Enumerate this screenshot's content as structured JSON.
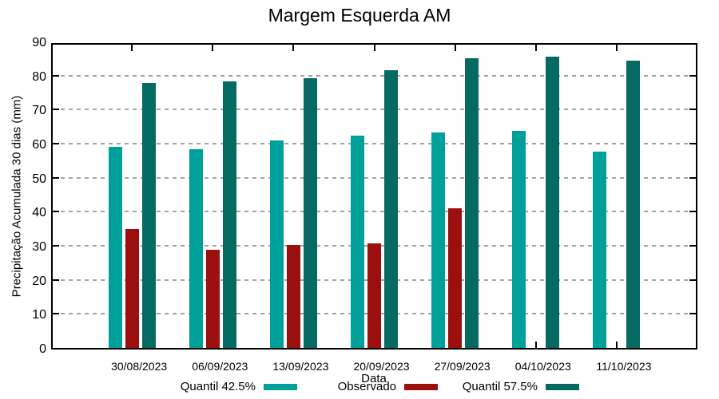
{
  "title": "Margem Esquerda AM",
  "chart_data": {
    "type": "bar",
    "title": "Margem Esquerda AM",
    "xlabel": "Data",
    "ylabel": "Precipitação Acumulada 30 dias (mm)",
    "categories": [
      "30/08/2023",
      "06/09/2023",
      "13/09/2023",
      "20/09/2023",
      "27/09/2023",
      "04/10/2023",
      "11/10/2023"
    ],
    "series": [
      {
        "name": "Quantil 42.5%",
        "color": "#00A09A",
        "values": [
          59.1,
          58.4,
          60.9,
          62.3,
          63.4,
          63.8,
          57.7
        ]
      },
      {
        "name": "Observado",
        "color": "#9B0F0F",
        "values": [
          34.9,
          28.8,
          30.3,
          30.8,
          41.1,
          null,
          null
        ]
      },
      {
        "name": "Quantil 57.5%",
        "color": "#056A62",
        "values": [
          77.7,
          78.3,
          79.2,
          81.6,
          85.1,
          85.6,
          84.3
        ]
      }
    ],
    "ylim": [
      0,
      90
    ],
    "ytick_step": 10,
    "ytick_labels": [
      "0",
      "10",
      "20",
      "30",
      "40",
      "50",
      "60",
      "70",
      "80",
      "90"
    ],
    "grid": true,
    "grid_color": "#a3a3a3",
    "border_color": "#000000",
    "legend_position": "bottom"
  }
}
